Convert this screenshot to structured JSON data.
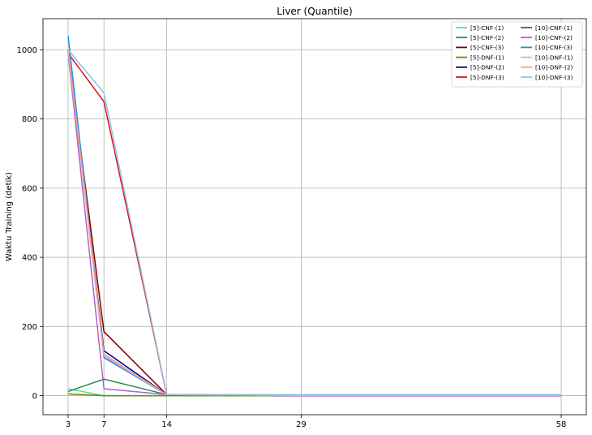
{
  "chart_data": {
    "type": "line",
    "title": "Liver (Quantile)",
    "xlabel": "",
    "ylabel": "Waktu Training (detik)",
    "x": [
      3,
      7,
      14,
      29,
      58
    ],
    "x_ticks": [
      "3",
      "7",
      "14",
      "29",
      "58"
    ],
    "xlim": [
      0.2,
      60.8
    ],
    "ylim": [
      -55,
      1090
    ],
    "y_ticks": [
      0,
      200,
      400,
      600,
      800,
      1000
    ],
    "grid": true,
    "legend_position": "top-right",
    "legend_columns": 2,
    "series": [
      {
        "name": "[5]-CNF-(1)",
        "color": "#3de8a0",
        "values": [
          20,
          0,
          0,
          0,
          0
        ]
      },
      {
        "name": "[5]-CNF-(2)",
        "color": "#2e8b57",
        "values": [
          12,
          48,
          3,
          0,
          0
        ]
      },
      {
        "name": "[5]-CNF-(3)",
        "color": "#800000",
        "values": [
          995,
          185,
          3,
          0,
          0
        ]
      },
      {
        "name": "[5]-DNF-(1)",
        "color": "#808000",
        "values": [
          5,
          0,
          0,
          0,
          0
        ]
      },
      {
        "name": "[5]-DNF-(2)",
        "color": "#000080",
        "values": [
          1000,
          130,
          3,
          0,
          0
        ]
      },
      {
        "name": "[5]-DNF-(3)",
        "color": "#e0121b",
        "values": [
          990,
          850,
          3,
          0,
          0
        ]
      },
      {
        "name": "[10]-CNF-(1)",
        "color": "#4a5a78",
        "values": [
          1000,
          115,
          3,
          1,
          1
        ]
      },
      {
        "name": "[10]-CNF-(2)",
        "color": "#b55fd0",
        "values": [
          990,
          20,
          3,
          0,
          0
        ]
      },
      {
        "name": "[10]-CNF-(3)",
        "color": "#1e8fe0",
        "values": [
          1040,
          110,
          3,
          1,
          1
        ]
      },
      {
        "name": "[10]-DNF-(1)",
        "color": "#d6aee0",
        "values": [
          1000,
          115,
          3,
          1,
          1
        ]
      },
      {
        "name": "[10]-DNF-(2)",
        "color": "#f4a582",
        "values": [
          1000,
          120,
          3,
          1,
          1
        ]
      },
      {
        "name": "[10]-DNF-(3)",
        "color": "#90c4e8",
        "values": [
          1000,
          875,
          4,
          3,
          3
        ]
      }
    ]
  }
}
